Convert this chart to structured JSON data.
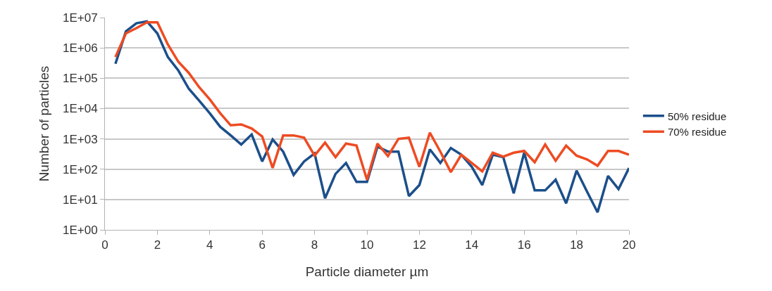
{
  "chart_data": {
    "type": "line",
    "xlabel": "Particle diameter µm",
    "ylabel": "Number of particles",
    "x": [
      0.4,
      0.8,
      1.2,
      1.6,
      2.0,
      2.4,
      2.8,
      3.2,
      3.6,
      4.0,
      4.4,
      4.8,
      5.2,
      5.6,
      6.0,
      6.4,
      6.8,
      7.2,
      7.6,
      8.0,
      8.4,
      8.8,
      9.2,
      9.6,
      10.0,
      10.4,
      10.8,
      11.2,
      11.6,
      12.0,
      12.4,
      12.8,
      13.2,
      13.6,
      14.0,
      14.4,
      14.8,
      15.2,
      15.6,
      16.0,
      16.4,
      16.8,
      17.2,
      17.6,
      18.0,
      18.4,
      18.8,
      19.2,
      19.6,
      20.0
    ],
    "series": [
      {
        "name": "50% residue",
        "color": "#1c4f8a",
        "values": [
          300000,
          3500000,
          6500000,
          7500000,
          3000000,
          500000,
          180000,
          45000,
          18000,
          7000,
          2500,
          1300,
          650,
          1400,
          180,
          950,
          380,
          65,
          180,
          330,
          11,
          70,
          160,
          38,
          38,
          550,
          380,
          380,
          13,
          30,
          450,
          160,
          500,
          300,
          120,
          30,
          300,
          250,
          16,
          350,
          20,
          20,
          45,
          7.5,
          90,
          18,
          3.8,
          60,
          22,
          110
        ]
      },
      {
        "name": "70% residue",
        "color": "#ee4b22",
        "values": [
          500000,
          3000000,
          4500000,
          7000000,
          7000000,
          1300000,
          350000,
          150000,
          50000,
          20000,
          7000,
          2800,
          3000,
          2200,
          1200,
          110,
          1300,
          1300,
          1100,
          280,
          750,
          250,
          700,
          600,
          45,
          700,
          270,
          1000,
          1100,
          120,
          1600,
          380,
          80,
          300,
          160,
          85,
          350,
          260,
          350,
          400,
          170,
          650,
          190,
          600,
          280,
          210,
          130,
          400,
          400,
          300
        ]
      }
    ],
    "xlim": [
      0,
      20
    ],
    "xticks": [
      0,
      2,
      4,
      6,
      8,
      10,
      12,
      14,
      16,
      18,
      20
    ],
    "ylim": [
      1,
      10000000
    ],
    "yticks": [
      {
        "value": 1,
        "label": "1E+00"
      },
      {
        "value": 10,
        "label": "1E+01"
      },
      {
        "value": 100,
        "label": "1E+02"
      },
      {
        "value": 1000,
        "label": "1E+03"
      },
      {
        "value": 10000,
        "label": "1E+04"
      },
      {
        "value": 100000,
        "label": "1E+05"
      },
      {
        "value": 1000000,
        "label": "1E+06"
      },
      {
        "value": 10000000,
        "label": "1E+07"
      }
    ],
    "log": "y",
    "grid": "y",
    "legend": "right",
    "marker": "none",
    "line_style": "solid"
  }
}
